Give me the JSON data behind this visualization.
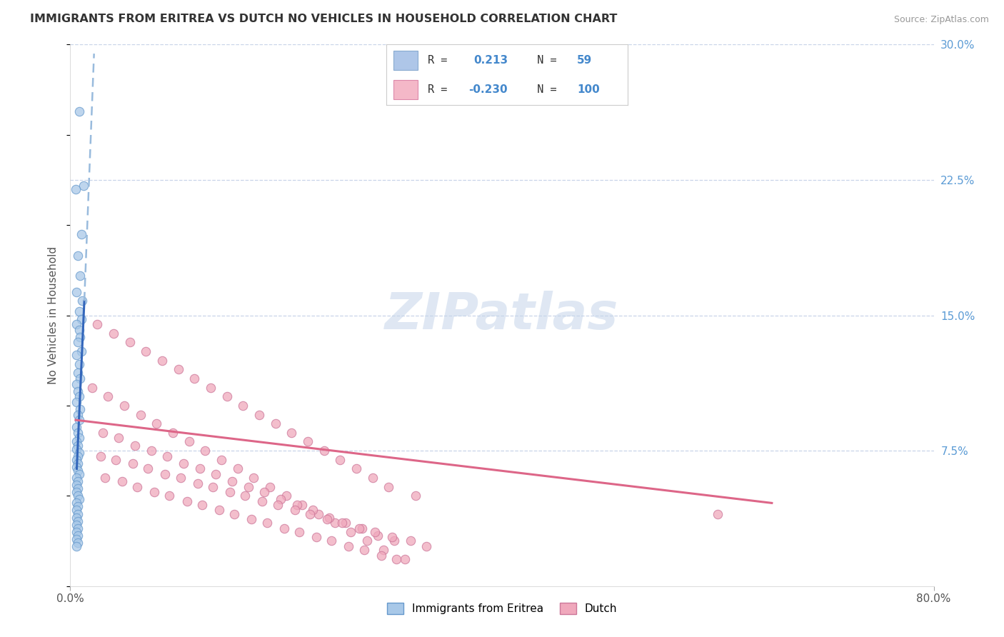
{
  "title": "IMMIGRANTS FROM ERITREA VS DUTCH NO VEHICLES IN HOUSEHOLD CORRELATION CHART",
  "source": "Source: ZipAtlas.com",
  "ylabel": "No Vehicles in Household",
  "background_color": "#ffffff",
  "grid_color": "#c8d4e8",
  "watermark": "ZIPatlas",
  "blue_color": "#a8c8e8",
  "blue_edge": "#6699cc",
  "pink_color": "#f0a8bc",
  "pink_edge": "#cc7799",
  "blue_line_color": "#3366bb",
  "blue_dash_color": "#99bbdd",
  "pink_line_color": "#dd6688",
  "blue_scatter_x": [
    0.008,
    0.012,
    0.005,
    0.01,
    0.007,
    0.009,
    0.006,
    0.011,
    0.008,
    0.01,
    0.006,
    0.008,
    0.009,
    0.007,
    0.01,
    0.006,
    0.008,
    0.007,
    0.009,
    0.006,
    0.007,
    0.008,
    0.006,
    0.009,
    0.007,
    0.008,
    0.006,
    0.007,
    0.008,
    0.006,
    0.007,
    0.006,
    0.008,
    0.007,
    0.006,
    0.007,
    0.006,
    0.007,
    0.008,
    0.006,
    0.007,
    0.006,
    0.007,
    0.006,
    0.007,
    0.008,
    0.006,
    0.007,
    0.006,
    0.007,
    0.006,
    0.007,
    0.006,
    0.007,
    0.006,
    0.007,
    0.006,
    0.007,
    0.006
  ],
  "blue_scatter_y": [
    0.263,
    0.222,
    0.22,
    0.195,
    0.183,
    0.172,
    0.163,
    0.158,
    0.152,
    0.148,
    0.145,
    0.142,
    0.138,
    0.135,
    0.13,
    0.128,
    0.123,
    0.118,
    0.115,
    0.112,
    0.108,
    0.105,
    0.102,
    0.098,
    0.095,
    0.092,
    0.088,
    0.085,
    0.082,
    0.08,
    0.078,
    0.076,
    0.074,
    0.072,
    0.07,
    0.068,
    0.066,
    0.064,
    0.062,
    0.06,
    0.058,
    0.056,
    0.054,
    0.052,
    0.05,
    0.048,
    0.046,
    0.044,
    0.042,
    0.04,
    0.038,
    0.036,
    0.034,
    0.032,
    0.03,
    0.028,
    0.026,
    0.024,
    0.022
  ],
  "pink_scatter_x": [
    0.02,
    0.035,
    0.05,
    0.065,
    0.08,
    0.095,
    0.11,
    0.125,
    0.14,
    0.155,
    0.17,
    0.185,
    0.2,
    0.215,
    0.23,
    0.245,
    0.26,
    0.275,
    0.29,
    0.31,
    0.025,
    0.04,
    0.055,
    0.07,
    0.085,
    0.1,
    0.115,
    0.13,
    0.145,
    0.16,
    0.175,
    0.19,
    0.205,
    0.22,
    0.235,
    0.25,
    0.265,
    0.28,
    0.295,
    0.32,
    0.03,
    0.045,
    0.06,
    0.075,
    0.09,
    0.105,
    0.12,
    0.135,
    0.15,
    0.165,
    0.18,
    0.195,
    0.21,
    0.225,
    0.24,
    0.255,
    0.27,
    0.285,
    0.3,
    0.33,
    0.028,
    0.042,
    0.058,
    0.072,
    0.088,
    0.102,
    0.118,
    0.132,
    0.148,
    0.162,
    0.178,
    0.192,
    0.208,
    0.222,
    0.238,
    0.252,
    0.268,
    0.282,
    0.298,
    0.315,
    0.032,
    0.048,
    0.062,
    0.078,
    0.092,
    0.108,
    0.122,
    0.138,
    0.152,
    0.168,
    0.182,
    0.198,
    0.212,
    0.228,
    0.242,
    0.258,
    0.272,
    0.288,
    0.302,
    0.6
  ],
  "pink_scatter_y": [
    0.11,
    0.105,
    0.1,
    0.095,
    0.09,
    0.085,
    0.08,
    0.075,
    0.07,
    0.065,
    0.06,
    0.055,
    0.05,
    0.045,
    0.04,
    0.035,
    0.03,
    0.025,
    0.02,
    0.015,
    0.145,
    0.14,
    0.135,
    0.13,
    0.125,
    0.12,
    0.115,
    0.11,
    0.105,
    0.1,
    0.095,
    0.09,
    0.085,
    0.08,
    0.075,
    0.07,
    0.065,
    0.06,
    0.055,
    0.05,
    0.085,
    0.082,
    0.078,
    0.075,
    0.072,
    0.068,
    0.065,
    0.062,
    0.058,
    0.055,
    0.052,
    0.048,
    0.045,
    0.042,
    0.038,
    0.035,
    0.032,
    0.028,
    0.025,
    0.022,
    0.072,
    0.07,
    0.068,
    0.065,
    0.062,
    0.06,
    0.057,
    0.055,
    0.052,
    0.05,
    0.047,
    0.045,
    0.042,
    0.04,
    0.037,
    0.035,
    0.032,
    0.03,
    0.027,
    0.025,
    0.06,
    0.058,
    0.055,
    0.052,
    0.05,
    0.047,
    0.045,
    0.042,
    0.04,
    0.037,
    0.035,
    0.032,
    0.03,
    0.027,
    0.025,
    0.022,
    0.02,
    0.017,
    0.015,
    0.04
  ],
  "xlim": [
    0.0,
    0.8
  ],
  "ylim": [
    0.0,
    0.3
  ],
  "yticks_right": [
    0.075,
    0.15,
    0.225,
    0.3
  ],
  "ytick_labels_right": [
    "7.5%",
    "15.0%",
    "22.5%",
    "30.0%"
  ],
  "xticks": [
    0.0,
    0.8
  ],
  "xtick_labels": [
    "0.0%",
    "80.0%"
  ]
}
